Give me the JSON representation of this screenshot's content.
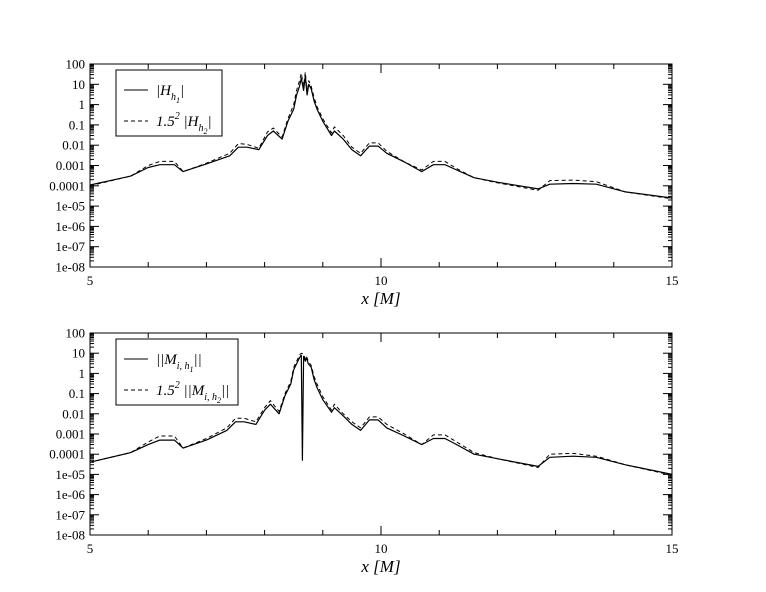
{
  "chart_data": [
    {
      "type": "line",
      "title": "",
      "xlabel": "x [M]",
      "ylabel": "",
      "xlim": [
        5,
        15
      ],
      "ylim": [
        1e-08,
        100
      ],
      "y_scale": "log",
      "grid": false,
      "legend_position": "top-left",
      "x_tick_labels": [
        "5",
        "10",
        "15"
      ],
      "y_tick_labels": [
        "100",
        "10",
        "1",
        "0.1",
        "0.01",
        "0.001",
        "0.0001",
        "1e-05",
        "1e-06",
        "1e-07",
        "1e-08"
      ],
      "legend": {
        "entries": [
          {
            "text": "|H",
            "sub": "h",
            "subsub": "1",
            "close": "|",
            "style": "solid"
          },
          {
            "prefix": "1.5",
            "sup": "2",
            "text": "|H",
            "sub": "h",
            "subsub": "2",
            "close": "|",
            "style": "dashed"
          }
        ]
      },
      "series": [
        {
          "style": "solid",
          "x": [
            5.0,
            5.7,
            6.0,
            6.2,
            6.45,
            6.6,
            7.0,
            7.4,
            7.55,
            7.7,
            7.9,
            8.05,
            8.15,
            8.3,
            8.4,
            8.5,
            8.55,
            8.6,
            8.63,
            8.67,
            8.7,
            8.73,
            8.76,
            8.8,
            8.85,
            8.9,
            9.0,
            9.15,
            9.2,
            9.35,
            9.5,
            9.65,
            9.8,
            9.95,
            10.1,
            10.4,
            10.7,
            10.9,
            11.1,
            11.3,
            11.6,
            12.0,
            12.7,
            12.9,
            13.3,
            13.7,
            14.2,
            15.0
          ],
          "y": [
            0.00011,
            0.0003,
            0.0008,
            0.0011,
            0.0011,
            0.0005,
            0.0012,
            0.003,
            0.008,
            0.008,
            0.006,
            0.03,
            0.05,
            0.02,
            0.15,
            0.6,
            3,
            8,
            20,
            5,
            25,
            3,
            10,
            6,
            1.5,
            0.6,
            0.15,
            0.03,
            0.05,
            0.02,
            0.006,
            0.003,
            0.009,
            0.009,
            0.004,
            0.0015,
            0.0005,
            0.0011,
            0.0011,
            0.0006,
            0.00025,
            0.00015,
            7e-05,
            0.00012,
            0.00013,
            0.00012,
            5e-05,
            2.5e-05
          ]
        },
        {
          "style": "dashed",
          "x": [
            5.0,
            5.7,
            6.0,
            6.2,
            6.45,
            6.6,
            7.0,
            7.4,
            7.55,
            7.7,
            7.9,
            8.05,
            8.15,
            8.3,
            8.4,
            8.5,
            8.55,
            8.6,
            8.63,
            8.67,
            8.7,
            8.73,
            8.76,
            8.8,
            8.85,
            8.9,
            9.0,
            9.15,
            9.2,
            9.35,
            9.5,
            9.65,
            9.8,
            9.95,
            10.1,
            10.4,
            10.7,
            10.9,
            11.1,
            11.3,
            11.6,
            12.0,
            12.7,
            12.9,
            13.3,
            13.7,
            14.2,
            15.0
          ],
          "y": [
            0.0001,
            0.0003,
            0.001,
            0.0016,
            0.0016,
            0.0005,
            0.0013,
            0.004,
            0.012,
            0.011,
            0.007,
            0.045,
            0.07,
            0.025,
            0.2,
            1.0,
            5,
            15,
            35,
            8,
            40,
            4,
            15,
            8,
            2.2,
            0.8,
            0.2,
            0.04,
            0.08,
            0.03,
            0.008,
            0.004,
            0.013,
            0.013,
            0.005,
            0.0015,
            0.0006,
            0.0016,
            0.0016,
            0.0007,
            0.00025,
            0.00014,
            6e-05,
            0.00018,
            0.00019,
            0.00016,
            5e-05,
            2.3e-05
          ]
        }
      ]
    },
    {
      "type": "line",
      "title": "",
      "xlabel": "x [M]",
      "ylabel": "",
      "xlim": [
        5,
        15
      ],
      "ylim": [
        1e-08,
        100
      ],
      "y_scale": "log",
      "grid": false,
      "legend_position": "top-left",
      "x_tick_labels": [
        "5",
        "10",
        "15"
      ],
      "y_tick_labels": [
        "100",
        "10",
        "1",
        "0.1",
        "0.01",
        "0.001",
        "0.0001",
        "1e-05",
        "1e-06",
        "1e-07",
        "1e-08"
      ],
      "legend": {
        "entries": [
          {
            "text": "||M",
            "sub": "i, h",
            "subsub": "1",
            "close": "||",
            "style": "solid"
          },
          {
            "prefix": "1.5",
            "sup": "2",
            "text": "||M",
            "sub": "i, h",
            "subsub": "2",
            "close": "||",
            "style": "dashed"
          }
        ]
      },
      "series": [
        {
          "style": "solid",
          "x": [
            5.0,
            5.7,
            6.0,
            6.2,
            6.45,
            6.6,
            7.0,
            7.35,
            7.5,
            7.65,
            7.85,
            8.0,
            8.1,
            8.25,
            8.35,
            8.45,
            8.5,
            8.55,
            8.6,
            8.63,
            8.65,
            8.67,
            8.7,
            8.72,
            8.75,
            8.8,
            8.85,
            8.9,
            9.0,
            9.15,
            9.2,
            9.35,
            9.5,
            9.65,
            9.8,
            9.95,
            10.1,
            10.4,
            10.7,
            10.9,
            11.1,
            11.3,
            11.6,
            12.0,
            12.7,
            12.9,
            13.3,
            13.7,
            14.2,
            15.0
          ],
          "y": [
            4e-05,
            0.00012,
            0.0003,
            0.0005,
            0.0005,
            0.0002,
            0.0005,
            0.0015,
            0.004,
            0.004,
            0.003,
            0.015,
            0.03,
            0.01,
            0.08,
            0.3,
            1.5,
            3,
            6,
            8,
            5e-05,
            7,
            4,
            6,
            3,
            2,
            0.5,
            0.2,
            0.05,
            0.012,
            0.02,
            0.008,
            0.003,
            0.0015,
            0.005,
            0.005,
            0.002,
            0.0008,
            0.0003,
            0.0006,
            0.0006,
            0.0003,
            0.0001,
            6e-05,
            2.5e-05,
            7e-05,
            8e-05,
            7e-05,
            3e-05,
            1e-05
          ]
        },
        {
          "style": "dashed",
          "x": [
            5.0,
            5.7,
            6.0,
            6.2,
            6.45,
            6.6,
            7.0,
            7.35,
            7.5,
            7.65,
            7.85,
            8.0,
            8.1,
            8.25,
            8.35,
            8.45,
            8.5,
            8.55,
            8.6,
            8.63,
            8.67,
            8.7,
            8.72,
            8.75,
            8.8,
            8.85,
            8.9,
            9.0,
            9.15,
            9.2,
            9.35,
            9.5,
            9.65,
            9.8,
            9.95,
            10.1,
            10.4,
            10.7,
            10.9,
            11.1,
            11.3,
            11.6,
            12.0,
            12.7,
            12.9,
            13.3,
            13.7,
            14.2,
            15.0
          ],
          "y": [
            4e-05,
            0.00012,
            0.0004,
            0.0008,
            0.0008,
            0.0002,
            0.0006,
            0.002,
            0.006,
            0.006,
            0.004,
            0.02,
            0.045,
            0.013,
            0.1,
            0.4,
            2,
            4,
            8,
            10,
            9,
            5,
            7,
            4,
            2.5,
            0.7,
            0.3,
            0.07,
            0.015,
            0.03,
            0.01,
            0.004,
            0.002,
            0.007,
            0.007,
            0.003,
            0.001,
            0.0003,
            0.0009,
            0.0009,
            0.0004,
            0.00012,
            6e-05,
            2.2e-05,
            0.0001,
            0.00011,
            8e-05,
            3e-05,
            9e-06
          ]
        }
      ]
    }
  ]
}
